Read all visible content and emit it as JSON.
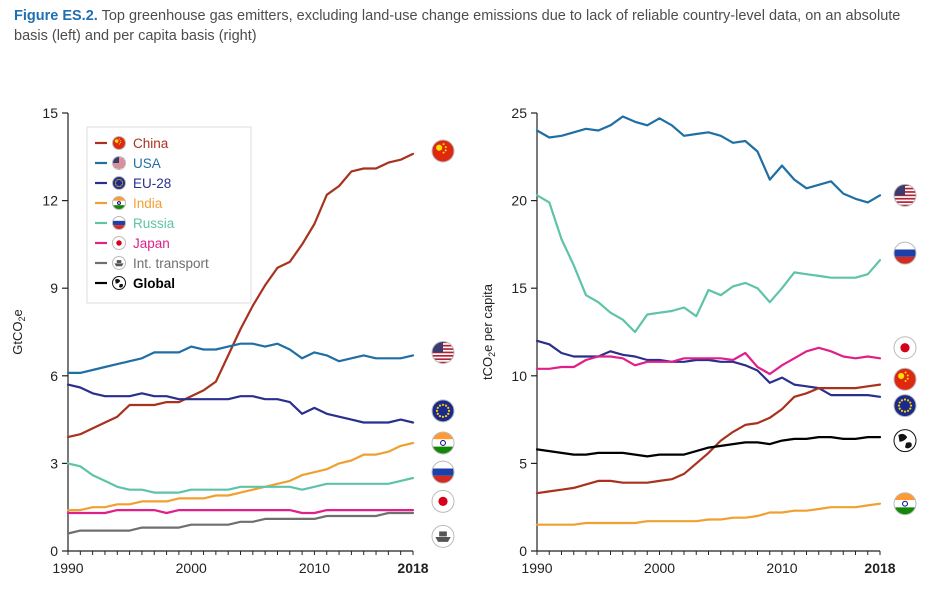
{
  "caption": {
    "fig_label": "Figure ES.2.",
    "text": " Top greenhouse gas emitters, excluding land-use change emissions due to lack of reliable country-level data, on an absolute basis (left) and per capita basis (right)"
  },
  "colors": {
    "China": "#a8321e",
    "USA": "#1f6fa5",
    "EU-28": "#2b2f8c",
    "India": "#f0a030",
    "Russia": "#5ec3a8",
    "Japan": "#e0208a",
    "Int. transport": "#6f6f6f",
    "Global": "#000000"
  },
  "icons": {
    "China": "china-flag-icon",
    "USA": "usa-flag-icon",
    "EU-28": "eu-flag-icon",
    "India": "india-flag-icon",
    "Russia": "russia-flag-icon",
    "Japan": "japan-flag-icon",
    "Int. transport": "ship-icon",
    "Global": "globe-icon"
  },
  "chart_data": [
    {
      "type": "line",
      "ylabel_main": "GtCO",
      "ylabel_sub": "2",
      "ylabel_tail": "e",
      "ylim": [
        0,
        15
      ],
      "yticks": [
        0,
        3,
        6,
        9,
        12,
        15
      ],
      "xlim": [
        1990,
        2018
      ],
      "xticks": [
        "1990",
        "2000",
        "2010",
        "2018"
      ],
      "x": [
        1990,
        1991,
        1992,
        1993,
        1994,
        1995,
        1996,
        1997,
        1998,
        1999,
        2000,
        2001,
        2002,
        2003,
        2004,
        2005,
        2006,
        2007,
        2008,
        2009,
        2010,
        2011,
        2012,
        2013,
        2014,
        2015,
        2016,
        2017,
        2018
      ],
      "legend": {
        "position": "top-left",
        "entries": [
          "China",
          "USA",
          "EU-28",
          "India",
          "Russia",
          "Japan",
          "Int. transport",
          "Global"
        ]
      },
      "series": [
        {
          "name": "China",
          "values": [
            3.9,
            4.0,
            4.2,
            4.4,
            4.6,
            5.0,
            5.0,
            5.0,
            5.1,
            5.1,
            5.3,
            5.5,
            5.8,
            6.7,
            7.6,
            8.4,
            9.1,
            9.7,
            9.9,
            10.5,
            11.2,
            12.2,
            12.5,
            13.0,
            13.1,
            13.1,
            13.3,
            13.4,
            13.6
          ]
        },
        {
          "name": "USA",
          "values": [
            6.1,
            6.1,
            6.2,
            6.3,
            6.4,
            6.5,
            6.6,
            6.8,
            6.8,
            6.8,
            7.0,
            6.9,
            6.9,
            7.0,
            7.1,
            7.1,
            7.0,
            7.1,
            6.9,
            6.6,
            6.8,
            6.7,
            6.5,
            6.6,
            6.7,
            6.6,
            6.6,
            6.6,
            6.7
          ]
        },
        {
          "name": "EU-28",
          "values": [
            5.7,
            5.6,
            5.4,
            5.3,
            5.3,
            5.3,
            5.4,
            5.3,
            5.3,
            5.2,
            5.2,
            5.2,
            5.2,
            5.2,
            5.3,
            5.3,
            5.2,
            5.2,
            5.1,
            4.7,
            4.9,
            4.7,
            4.6,
            4.5,
            4.4,
            4.4,
            4.4,
            4.5,
            4.4
          ]
        },
        {
          "name": "India",
          "values": [
            1.4,
            1.4,
            1.5,
            1.5,
            1.6,
            1.6,
            1.7,
            1.7,
            1.7,
            1.8,
            1.8,
            1.8,
            1.9,
            1.9,
            2.0,
            2.1,
            2.2,
            2.3,
            2.4,
            2.6,
            2.7,
            2.8,
            3.0,
            3.1,
            3.3,
            3.3,
            3.4,
            3.6,
            3.7
          ]
        },
        {
          "name": "Russia",
          "values": [
            3.0,
            2.9,
            2.6,
            2.4,
            2.2,
            2.1,
            2.1,
            2.0,
            2.0,
            2.0,
            2.1,
            2.1,
            2.1,
            2.1,
            2.2,
            2.2,
            2.2,
            2.2,
            2.2,
            2.1,
            2.2,
            2.3,
            2.3,
            2.3,
            2.3,
            2.3,
            2.3,
            2.4,
            2.5
          ]
        },
        {
          "name": "Japan",
          "values": [
            1.3,
            1.3,
            1.3,
            1.3,
            1.4,
            1.4,
            1.4,
            1.4,
            1.3,
            1.4,
            1.4,
            1.4,
            1.4,
            1.4,
            1.4,
            1.4,
            1.4,
            1.4,
            1.4,
            1.3,
            1.3,
            1.4,
            1.4,
            1.4,
            1.4,
            1.4,
            1.4,
            1.4,
            1.4
          ]
        },
        {
          "name": "Int. transport",
          "values": [
            0.6,
            0.7,
            0.7,
            0.7,
            0.7,
            0.7,
            0.8,
            0.8,
            0.8,
            0.8,
            0.9,
            0.9,
            0.9,
            0.9,
            1.0,
            1.0,
            1.1,
            1.1,
            1.1,
            1.1,
            1.1,
            1.2,
            1.2,
            1.2,
            1.2,
            1.2,
            1.3,
            1.3,
            1.3
          ]
        }
      ],
      "end_icons": [
        {
          "name": "China",
          "value": 13.7
        },
        {
          "name": "USA",
          "value": 6.8
        },
        {
          "name": "EU-28",
          "value": 4.8
        },
        {
          "name": "India",
          "value": 3.7
        },
        {
          "name": "Russia",
          "value": 2.7
        },
        {
          "name": "Japan",
          "value": 1.7
        },
        {
          "name": "Int. transport",
          "value": 0.5
        }
      ]
    },
    {
      "type": "line",
      "ylabel_main": "tCO",
      "ylabel_sub": "2",
      "ylabel_tail": "e per capita",
      "ylim": [
        0,
        25
      ],
      "yticks": [
        0,
        5,
        10,
        15,
        20,
        25
      ],
      "xlim": [
        1990,
        2018
      ],
      "xticks": [
        "1990",
        "2000",
        "2010",
        "2018"
      ],
      "x": [
        1990,
        1991,
        1992,
        1993,
        1994,
        1995,
        1996,
        1997,
        1998,
        1999,
        2000,
        2001,
        2002,
        2003,
        2004,
        2005,
        2006,
        2007,
        2008,
        2009,
        2010,
        2011,
        2012,
        2013,
        2014,
        2015,
        2016,
        2017,
        2018
      ],
      "series": [
        {
          "name": "USA",
          "values": [
            24.0,
            23.6,
            23.7,
            23.9,
            24.1,
            24.0,
            24.3,
            24.8,
            24.5,
            24.3,
            24.7,
            24.3,
            23.7,
            23.8,
            23.9,
            23.7,
            23.3,
            23.4,
            22.8,
            21.2,
            22.0,
            21.2,
            20.7,
            20.9,
            21.1,
            20.4,
            20.1,
            19.9,
            20.3
          ]
        },
        {
          "name": "Russia",
          "values": [
            20.3,
            19.9,
            17.8,
            16.3,
            14.6,
            14.2,
            13.6,
            13.2,
            12.5,
            13.5,
            13.6,
            13.7,
            13.9,
            13.4,
            14.9,
            14.6,
            15.1,
            15.3,
            15.0,
            14.2,
            15.0,
            15.9,
            15.8,
            15.7,
            15.6,
            15.6,
            15.6,
            15.8,
            16.6
          ]
        },
        {
          "name": "EU-28",
          "values": [
            12.0,
            11.8,
            11.3,
            11.1,
            11.1,
            11.1,
            11.4,
            11.2,
            11.1,
            10.9,
            10.9,
            10.8,
            10.8,
            10.9,
            10.9,
            10.8,
            10.8,
            10.6,
            10.3,
            9.6,
            9.9,
            9.5,
            9.4,
            9.3,
            8.9,
            8.9,
            8.9,
            8.9,
            8.8
          ]
        },
        {
          "name": "Japan",
          "values": [
            10.4,
            10.4,
            10.5,
            10.5,
            10.9,
            11.1,
            11.1,
            11.0,
            10.6,
            10.8,
            10.8,
            10.8,
            11.0,
            11.0,
            11.0,
            11.0,
            10.9,
            11.3,
            10.5,
            10.1,
            10.6,
            11.0,
            11.4,
            11.6,
            11.4,
            11.1,
            11.0,
            11.1,
            11.0
          ]
        },
        {
          "name": "China",
          "values": [
            3.3,
            3.4,
            3.5,
            3.6,
            3.8,
            4.0,
            4.0,
            3.9,
            3.9,
            3.9,
            4.0,
            4.1,
            4.4,
            5.0,
            5.6,
            6.3,
            6.8,
            7.2,
            7.3,
            7.6,
            8.1,
            8.8,
            9.0,
            9.3,
            9.3,
            9.3,
            9.3,
            9.4,
            9.5
          ]
        },
        {
          "name": "India",
          "values": [
            1.5,
            1.5,
            1.5,
            1.5,
            1.6,
            1.6,
            1.6,
            1.6,
            1.6,
            1.7,
            1.7,
            1.7,
            1.7,
            1.7,
            1.8,
            1.8,
            1.9,
            1.9,
            2.0,
            2.2,
            2.2,
            2.3,
            2.3,
            2.4,
            2.5,
            2.5,
            2.5,
            2.6,
            2.7
          ]
        },
        {
          "name": "Global",
          "values": [
            5.8,
            5.7,
            5.6,
            5.5,
            5.5,
            5.6,
            5.6,
            5.6,
            5.5,
            5.4,
            5.5,
            5.5,
            5.5,
            5.7,
            5.9,
            6.0,
            6.1,
            6.2,
            6.2,
            6.1,
            6.3,
            6.4,
            6.4,
            6.5,
            6.5,
            6.4,
            6.4,
            6.5,
            6.5
          ]
        }
      ],
      "end_icons": [
        {
          "name": "USA",
          "value": 20.3
        },
        {
          "name": "Russia",
          "value": 17.0
        },
        {
          "name": "Japan",
          "value": 11.6
        },
        {
          "name": "China",
          "value": 9.8
        },
        {
          "name": "EU-28",
          "value": 8.3
        },
        {
          "name": "Global",
          "value": 6.3
        },
        {
          "name": "India",
          "value": 2.7
        }
      ]
    }
  ]
}
